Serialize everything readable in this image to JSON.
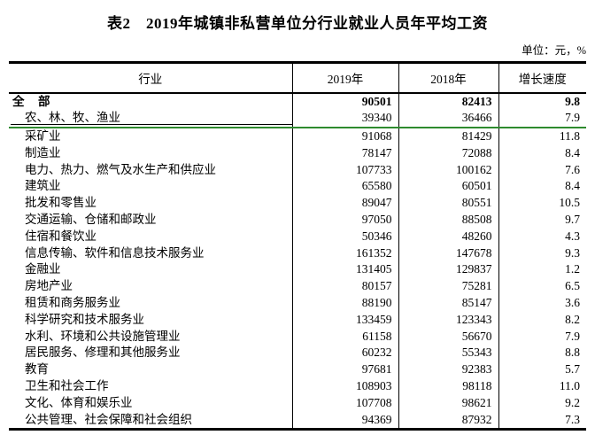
{
  "title": "表2　2019年城镇非私营单位分行业就业人员年平均工资",
  "unit_label": "单位：元，%",
  "colors": {
    "accent_green": "#2e8b2e",
    "border_black": "#000000"
  },
  "table": {
    "columns": [
      "行业",
      "2019年",
      "2018年",
      "增长速度"
    ],
    "rows": [
      {
        "industry": "全　部",
        "y2019": "90501",
        "y2018": "82413",
        "growth": "9.8"
      },
      {
        "industry": "农、林、牧、渔业",
        "y2019": "39340",
        "y2018": "36466",
        "growth": "7.9"
      },
      {
        "industry": "采矿业",
        "y2019": "91068",
        "y2018": "81429",
        "growth": "11.8"
      },
      {
        "industry": "制造业",
        "y2019": "78147",
        "y2018": "72088",
        "growth": "8.4"
      },
      {
        "industry": "电力、热力、燃气及水生产和供应业",
        "y2019": "107733",
        "y2018": "100162",
        "growth": "7.6"
      },
      {
        "industry": "建筑业",
        "y2019": "65580",
        "y2018": "60501",
        "growth": "8.4"
      },
      {
        "industry": "批发和零售业",
        "y2019": "89047",
        "y2018": "80551",
        "growth": "10.5"
      },
      {
        "industry": "交通运输、仓储和邮政业",
        "y2019": "97050",
        "y2018": "88508",
        "growth": "9.7"
      },
      {
        "industry": "住宿和餐饮业",
        "y2019": "50346",
        "y2018": "48260",
        "growth": "4.3"
      },
      {
        "industry": "信息传输、软件和信息技术服务业",
        "y2019": "161352",
        "y2018": "147678",
        "growth": "9.3"
      },
      {
        "industry": "金融业",
        "y2019": "131405",
        "y2018": "129837",
        "growth": "1.2"
      },
      {
        "industry": "房地产业",
        "y2019": "80157",
        "y2018": "75281",
        "growth": "6.5"
      },
      {
        "industry": "租赁和商务服务业",
        "y2019": "88190",
        "y2018": "85147",
        "growth": "3.6"
      },
      {
        "industry": "科学研究和技术服务业",
        "y2019": "133459",
        "y2018": "123343",
        "growth": "8.2"
      },
      {
        "industry": "水利、环境和公共设施管理业",
        "y2019": "61158",
        "y2018": "56670",
        "growth": "7.9"
      },
      {
        "industry": "居民服务、修理和其他服务业",
        "y2019": "60232",
        "y2018": "55343",
        "growth": "8.8"
      },
      {
        "industry": "教育",
        "y2019": "97681",
        "y2018": "92383",
        "growth": "5.7"
      },
      {
        "industry": "卫生和社会工作",
        "y2019": "108903",
        "y2018": "98118",
        "growth": "11.0"
      },
      {
        "industry": "文化、体育和娱乐业",
        "y2019": "107708",
        "y2018": "98621",
        "growth": "9.2"
      },
      {
        "industry": "公共管理、社会保障和社会组织",
        "y2019": "94369",
        "y2018": "87932",
        "growth": "7.3"
      }
    ]
  }
}
